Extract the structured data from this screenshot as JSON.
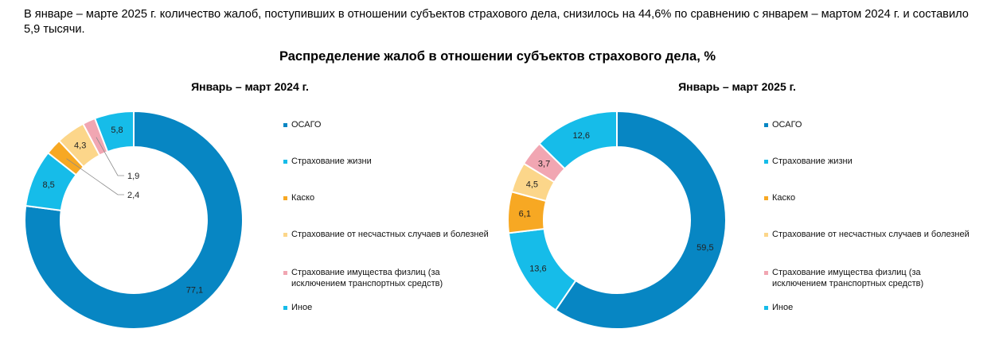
{
  "intro_text": "В январе – марте 2025 г. количество жалоб, поступивших в отношении субъектов страхового дела, снизилось на 44,6% по сравнению с январем – мартом 2024 г. и составило 5,9 тысячи.",
  "main_title": "Распределение жалоб в отношении субъектов страхового дела, %",
  "chart_data": [
    {
      "type": "pie",
      "title": "Январь – март 2024 г.",
      "categories": [
        "ОСАГО",
        "Страхование жизни",
        "Каско",
        "Страхование от несчастных случаев и болезней",
        "Страхование имущества физлиц (за исключением транспортных средств)",
        "Иное"
      ],
      "values": [
        77.1,
        8.5,
        2.4,
        4.3,
        1.9,
        5.8
      ],
      "value_labels": [
        "77,1",
        "8,5",
        "2,4",
        "4,3",
        "1,9",
        "5,8"
      ],
      "colors": [
        "#0786C3",
        "#16BCE9",
        "#F7A823",
        "#FCD68A",
        "#F1A6B2",
        "#16BCE9"
      ],
      "legend": "right"
    },
    {
      "type": "pie",
      "title": "Январь – март 2025 г.",
      "categories": [
        "ОСАГО",
        "Страхование жизни",
        "Каско",
        "Страхование от несчастных случаев и болезней",
        "Страхование имущества физлиц (за исключением транспортных средств)",
        "Иное"
      ],
      "values": [
        59.5,
        13.6,
        6.1,
        4.5,
        3.7,
        12.6
      ],
      "value_labels": [
        "59,5",
        "13,6",
        "6,1",
        "4,5",
        "3,7",
        "12,6"
      ],
      "colors": [
        "#0786C3",
        "#16BCE9",
        "#F7A823",
        "#FCD68A",
        "#F1A6B2",
        "#16BCE9"
      ],
      "legend": "right"
    }
  ]
}
